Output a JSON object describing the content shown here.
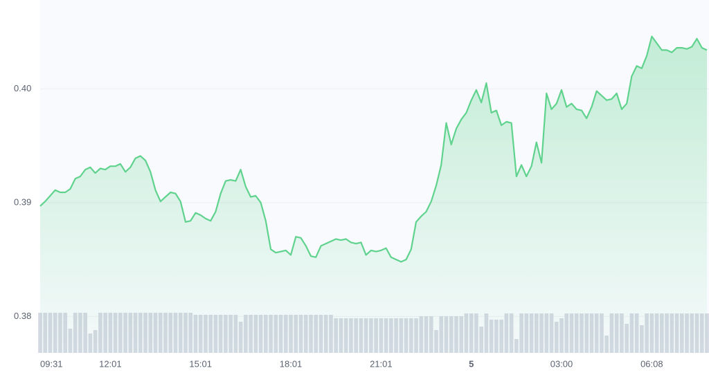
{
  "chart_data": {
    "type": "line",
    "categories": [
      "09:31",
      null,
      null,
      null,
      null,
      null,
      null,
      null,
      null,
      null,
      null,
      null,
      null,
      null,
      "12:01",
      null,
      null,
      null,
      null,
      null,
      null,
      null,
      null,
      null,
      null,
      null,
      null,
      null,
      null,
      null,
      null,
      null,
      "15:01",
      null,
      null,
      null,
      null,
      null,
      null,
      null,
      null,
      null,
      null,
      null,
      null,
      null,
      null,
      null,
      null,
      null,
      "18:01",
      null,
      null,
      null,
      null,
      null,
      null,
      null,
      null,
      null,
      null,
      null,
      null,
      null,
      null,
      null,
      null,
      null,
      "21:01",
      null,
      null,
      null,
      null,
      null,
      null,
      null,
      null,
      null,
      null,
      null,
      null,
      null,
      null,
      null,
      null,
      null,
      "5",
      null,
      null,
      null,
      null,
      null,
      null,
      null,
      null,
      null,
      null,
      null,
      null,
      null,
      null,
      null,
      null,
      null,
      "03:00",
      null,
      null,
      null,
      null,
      null,
      null,
      null,
      null,
      null,
      null,
      null,
      null,
      null,
      null,
      null,
      null,
      null,
      "06:08",
      null,
      null,
      null,
      null,
      null,
      null,
      null,
      null,
      null,
      null,
      null
    ],
    "series": [
      {
        "type": "line",
        "color": "#5fd38d",
        "values": [
          0.3897,
          0.3901,
          0.3906,
          0.3911,
          0.3909,
          0.3909,
          0.3912,
          0.3921,
          0.3923,
          0.3929,
          0.3931,
          0.3926,
          0.393,
          0.3929,
          0.3932,
          0.3932,
          0.3934,
          0.3927,
          0.3931,
          0.3939,
          0.3941,
          0.3937,
          0.3927,
          0.3911,
          0.3901,
          0.3905,
          0.3909,
          0.3908,
          0.3901,
          0.3883,
          0.3884,
          0.3891,
          0.3889,
          0.3886,
          0.3884,
          0.3892,
          0.3908,
          0.3919,
          0.392,
          0.3919,
          0.3929,
          0.3914,
          0.3905,
          0.3906,
          0.39,
          0.3884,
          0.3859,
          0.3856,
          0.3857,
          0.3858,
          0.3854,
          0.387,
          0.3869,
          0.3862,
          0.3853,
          0.3852,
          0.3862,
          0.3864,
          0.3866,
          0.3868,
          0.3867,
          0.3868,
          0.3865,
          0.3864,
          0.3865,
          0.3854,
          0.3858,
          0.3857,
          0.3858,
          0.386,
          0.3852,
          0.385,
          0.3848,
          0.385,
          0.3859,
          0.3883,
          0.3888,
          0.3892,
          0.3901,
          0.3915,
          0.3933,
          0.397,
          0.3951,
          0.3965,
          0.3973,
          0.3979,
          0.399,
          0.3999,
          0.3988,
          0.4005,
          0.3979,
          0.3981,
          0.3968,
          0.3971,
          0.397,
          0.3923,
          0.3933,
          0.3923,
          0.3932,
          0.3953,
          0.3935,
          0.3996,
          0.3982,
          0.3987,
          0.3999,
          0.3984,
          0.3987,
          0.3982,
          0.3981,
          0.3974,
          0.3984,
          0.3998,
          0.3994,
          0.399,
          0.3991,
          0.3996,
          0.3982,
          0.3987,
          0.4011,
          0.402,
          0.4018,
          0.4029,
          0.4046,
          0.404,
          0.4034,
          0.4034,
          0.4032,
          0.4036,
          0.4036,
          0.4035,
          0.4037,
          0.4044,
          0.4036,
          0.4034
        ]
      },
      {
        "type": "bar",
        "color": "#d3d8e2",
        "values": [
          58,
          58,
          58,
          58,
          58,
          58,
          35,
          58,
          58,
          58,
          28,
          33,
          58,
          58,
          58,
          58,
          58,
          58,
          58,
          58,
          58,
          58,
          58,
          58,
          58,
          58,
          58,
          58,
          58,
          58,
          58,
          55,
          55,
          55,
          55,
          55,
          55,
          55,
          55,
          55,
          45,
          55,
          55,
          55,
          55,
          55,
          55,
          55,
          55,
          55,
          55,
          55,
          55,
          55,
          55,
          55,
          55,
          55,
          55,
          50,
          50,
          50,
          50,
          50,
          50,
          50,
          50,
          50,
          50,
          50,
          50,
          50,
          50,
          50,
          50,
          50,
          53,
          53,
          53,
          33,
          53,
          53,
          53,
          53,
          53,
          57,
          57,
          57,
          38,
          57,
          48,
          48,
          48,
          57,
          57,
          20,
          57,
          57,
          57,
          57,
          57,
          57,
          57,
          45,
          50,
          57,
          57,
          57,
          57,
          57,
          57,
          57,
          57,
          25,
          57,
          57,
          57,
          42,
          57,
          57,
          40,
          57,
          57,
          57,
          57,
          57,
          57,
          57,
          57,
          57,
          57,
          57,
          57,
          57
        ]
      }
    ],
    "ylim": [
      0.3768,
      0.4078
    ],
    "yticks": [
      0.38,
      0.39,
      {
        "value": 0.4,
        "label": "0.40"
      }
    ],
    "grid": true
  }
}
